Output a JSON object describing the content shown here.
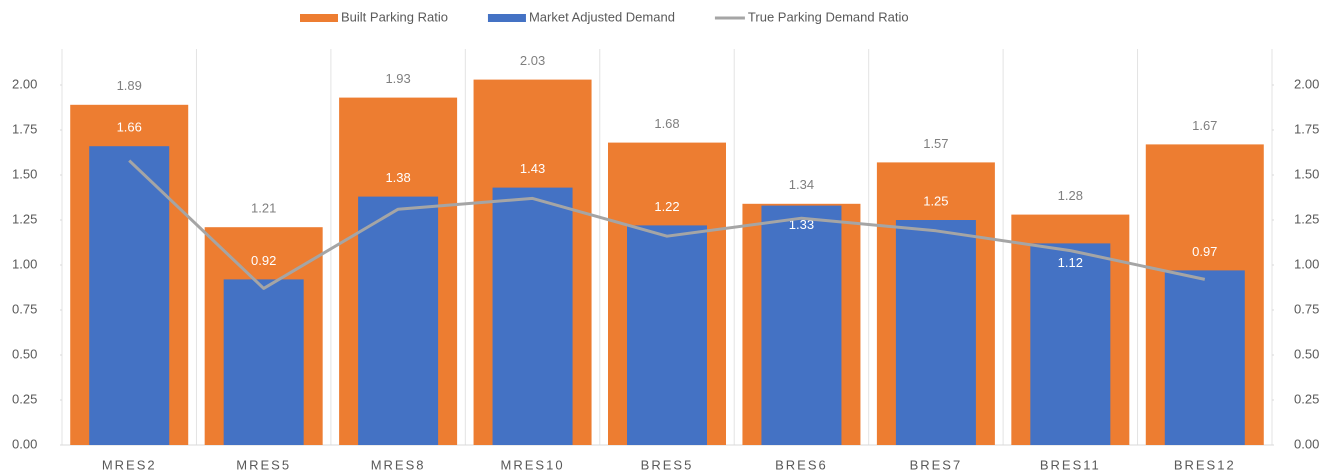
{
  "chart_data": {
    "type": "bar",
    "categories": [
      "MRES2",
      "MRES5",
      "MRES8",
      "MRES10",
      "BRES5",
      "BRES6",
      "BRES7",
      "BRES11",
      "BRES12"
    ],
    "series": [
      {
        "name": "Built Parking Ratio",
        "color": "#ed7d31",
        "type": "bar",
        "values": [
          1.89,
          1.21,
          1.93,
          2.03,
          1.68,
          1.34,
          1.57,
          1.28,
          1.67
        ]
      },
      {
        "name": "Market Adjusted Demand",
        "color": "#4472c4",
        "type": "bar",
        "values": [
          1.66,
          0.92,
          1.38,
          1.43,
          1.22,
          1.33,
          1.25,
          1.12,
          0.97
        ]
      },
      {
        "name": "True Parking Demand Ratio",
        "color": "#a5a5a5",
        "type": "line",
        "axis": "y2",
        "values": [
          1.58,
          0.87,
          1.31,
          1.37,
          1.16,
          1.26,
          1.19,
          1.08,
          0.92
        ]
      }
    ],
    "ylim": [
      0,
      2.2
    ],
    "yticks": [
      {
        "value": 0,
        "label": "0.00"
      },
      0.25,
      {
        "value": 0.5,
        "label": "0.50"
      },
      0.75,
      {
        "value": 1,
        "label": "1.00"
      },
      1.25,
      {
        "value": 1.5,
        "label": "1.50"
      },
      1.75,
      {
        "value": 2,
        "label": "2.00"
      }
    ],
    "y2lim": [
      0,
      2.2
    ],
    "y2ticks": [
      {
        "value": 0,
        "label": "0.00"
      },
      0.25,
      {
        "value": 0.5,
        "label": "0.50"
      },
      0.75,
      {
        "value": 1,
        "label": "1.00"
      },
      1.25,
      {
        "value": 1.5,
        "label": "1.50"
      },
      1.75,
      {
        "value": 2,
        "label": "2.00"
      }
    ],
    "legend": "top"
  }
}
